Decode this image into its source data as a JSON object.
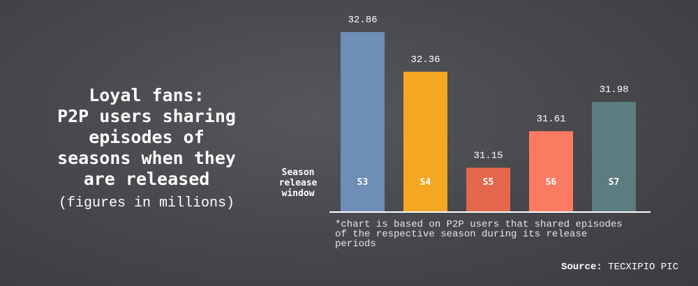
{
  "title": {
    "lines": [
      "Loyal fans:",
      "P2P users sharing",
      "episodes of",
      "seasons when they",
      "are released"
    ],
    "subtitle": "(figures in millions)"
  },
  "axis_label_lines": [
    "Season",
    "release",
    "window"
  ],
  "footnote_lines": [
    "*chart is based on P2P users that shared episodes",
    "of the respective season during its release",
    "periods"
  ],
  "source": {
    "label": "Source:",
    "value": "TECXIPIO PIC"
  },
  "colors": {
    "S3": "#6e8db7",
    "S4": "#f5a623",
    "S5": "#e4684b",
    "S6": "#fb7b62",
    "S7": "#5c7d80",
    "axis": "#ffffff"
  },
  "chart_data": {
    "type": "bar",
    "categories": [
      "S3",
      "S4",
      "S5",
      "S6",
      "S7"
    ],
    "values": [
      32.86,
      32.36,
      31.15,
      31.61,
      31.98
    ],
    "value_labels": [
      "32.86",
      "32.36",
      "31.15",
      "31.61",
      "31.98"
    ],
    "xlabel": "Season release window",
    "ylabel": "",
    "ylim": [
      30.6,
      33.0
    ],
    "grid": false,
    "legend": "none"
  }
}
